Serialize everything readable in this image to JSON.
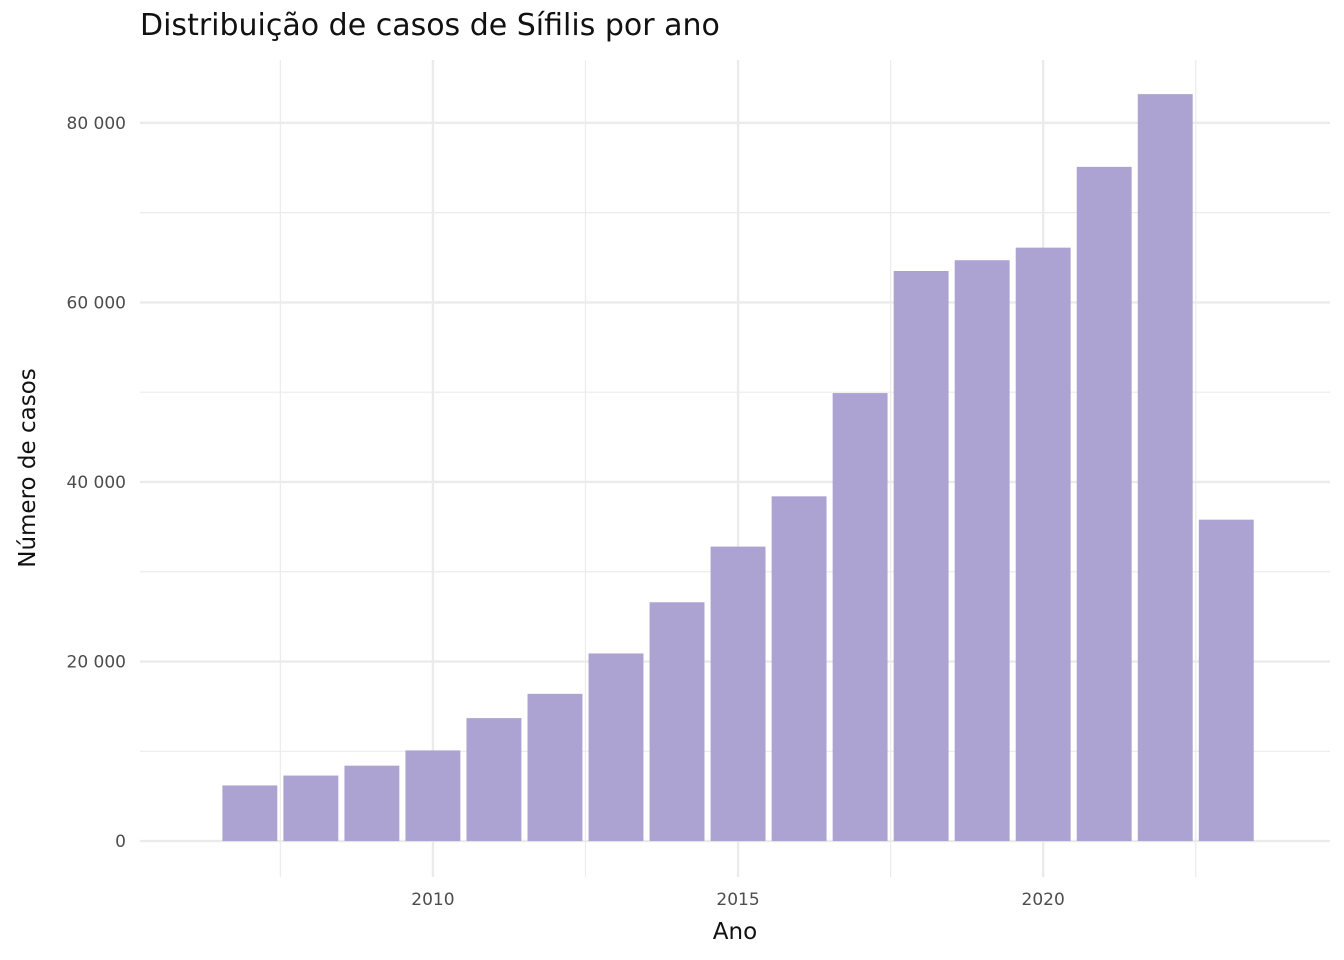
{
  "chart_data": {
    "type": "bar",
    "title": "Distribuição de casos de Sífilis por ano",
    "xlabel": "Ano",
    "ylabel": "Número de casos",
    "x": [
      2007,
      2008,
      2009,
      2010,
      2011,
      2012,
      2013,
      2014,
      2015,
      2016,
      2017,
      2018,
      2019,
      2020,
      2021,
      2022,
      2023
    ],
    "values": [
      6200,
      7300,
      8400,
      10100,
      13700,
      16400,
      20900,
      26600,
      32800,
      38400,
      49900,
      63500,
      64700,
      66100,
      75100,
      83200,
      35800
    ],
    "xlim": [
      2005.2,
      2024.7
    ],
    "ylim": [
      -4000,
      87000
    ],
    "x_ticks": [
      2010,
      2015,
      2020
    ],
    "x_tick_labels": [
      "2010",
      "2015",
      "2020"
    ],
    "y_ticks": [
      0,
      20000,
      40000,
      60000,
      80000
    ],
    "y_tick_labels": [
      "0",
      "20 000",
      "40 000",
      "60 000",
      "80 000"
    ],
    "grid": true,
    "bar_color": "#ada3d3",
    "grid_color": "#ebebeb"
  }
}
